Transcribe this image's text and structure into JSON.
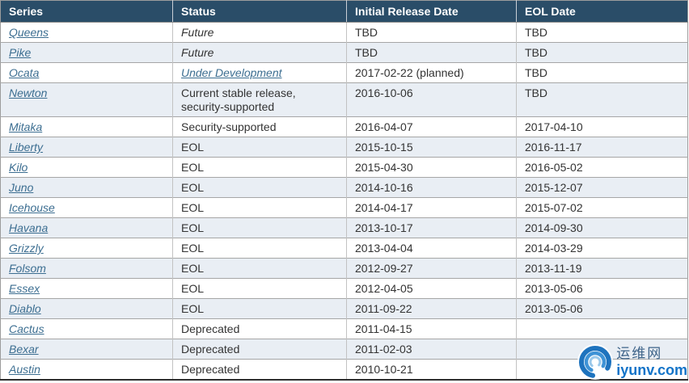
{
  "table": {
    "columns": [
      {
        "label": "Series"
      },
      {
        "label": "Status"
      },
      {
        "label": "Initial Release Date"
      },
      {
        "label": "EOL Date"
      }
    ],
    "rows": [
      {
        "series": "Queens",
        "status": "Future",
        "status_italic": true,
        "status_link": false,
        "initial": "TBD",
        "eol": "TBD"
      },
      {
        "series": "Pike",
        "status": "Future",
        "status_italic": true,
        "status_link": false,
        "initial": "TBD",
        "eol": "TBD"
      },
      {
        "series": "Ocata",
        "status": "Under Development",
        "status_italic": true,
        "status_link": true,
        "initial": "2017-02-22 (planned)",
        "eol": "TBD"
      },
      {
        "series": "Newton",
        "status": "Current stable release, security-supported",
        "status_italic": false,
        "status_link": false,
        "initial": "2016-10-06",
        "eol": "TBD"
      },
      {
        "series": "Mitaka",
        "status": "Security-supported",
        "status_italic": false,
        "status_link": false,
        "initial": "2016-04-07",
        "eol": "2017-04-10"
      },
      {
        "series": "Liberty",
        "status": "EOL",
        "status_italic": false,
        "status_link": false,
        "initial": "2015-10-15",
        "eol": "2016-11-17"
      },
      {
        "series": "Kilo",
        "status": "EOL",
        "status_italic": false,
        "status_link": false,
        "initial": "2015-04-30",
        "eol": "2016-05-02"
      },
      {
        "series": "Juno",
        "status": "EOL",
        "status_italic": false,
        "status_link": false,
        "initial": "2014-10-16",
        "eol": "2015-12-07"
      },
      {
        "series": "Icehouse",
        "status": "EOL",
        "status_italic": false,
        "status_link": false,
        "initial": "2014-04-17",
        "eol": "2015-07-02"
      },
      {
        "series": "Havana",
        "status": "EOL",
        "status_italic": false,
        "status_link": false,
        "initial": "2013-10-17",
        "eol": "2014-09-30"
      },
      {
        "series": "Grizzly",
        "status": "EOL",
        "status_italic": false,
        "status_link": false,
        "initial": "2013-04-04",
        "eol": "2014-03-29"
      },
      {
        "series": "Folsom",
        "status": "EOL",
        "status_italic": false,
        "status_link": false,
        "initial": "2012-09-27",
        "eol": "2013-11-19"
      },
      {
        "series": "Essex",
        "status": "EOL",
        "status_italic": false,
        "status_link": false,
        "initial": "2012-04-05",
        "eol": "2013-05-06"
      },
      {
        "series": "Diablo",
        "status": "EOL",
        "status_italic": false,
        "status_link": false,
        "initial": "2011-09-22",
        "eol": "2013-05-06"
      },
      {
        "series": "Cactus",
        "status": "Deprecated",
        "status_italic": false,
        "status_link": false,
        "initial": "2011-04-15",
        "eol": ""
      },
      {
        "series": "Bexar",
        "status": "Deprecated",
        "status_italic": false,
        "status_link": false,
        "initial": "2011-02-03",
        "eol": ""
      },
      {
        "series": "Austin",
        "status": "Deprecated",
        "status_italic": false,
        "status_link": false,
        "initial": "2010-10-21",
        "eol": ""
      }
    ]
  },
  "watermark": {
    "cn_text": "运维网",
    "site": "iyunv.com"
  },
  "colors": {
    "header_bg": "#2a4d68",
    "header_text": "#ffffff",
    "row_alt_bg": "#e9eef4",
    "link": "#3c6e91",
    "body_text": "#333333",
    "watermark_blue": "#1273c8",
    "watermark_cn": "#3c6288"
  }
}
